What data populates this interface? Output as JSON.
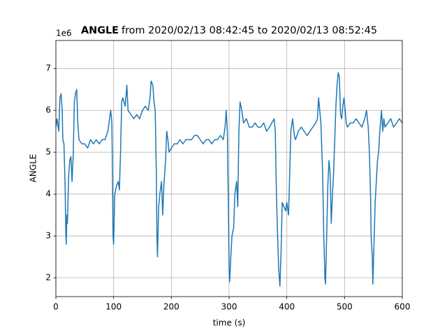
{
  "chart_data": {
    "type": "line",
    "title": {
      "name": "ANGLE",
      "rest": "from 2020/02/13 08:42:45 to 2020/02/13 08:52:45"
    },
    "offset_label": "1e6",
    "xlabel": "time (s)",
    "ylabel": "ANGLE",
    "xlim": [
      0,
      600
    ],
    "xticks": [
      0,
      100,
      200,
      300,
      400,
      500,
      600
    ],
    "ylim": [
      1.55,
      7.67
    ],
    "yticks": [
      2,
      3,
      4,
      5,
      6,
      7
    ],
    "grid": true,
    "series": [
      {
        "name": "ANGLE",
        "color": "#1f77b4",
        "x": [
          0,
          2,
          5,
          7,
          9,
          11,
          12,
          14,
          16,
          17,
          18,
          19,
          20,
          22,
          24,
          26,
          28,
          30,
          32,
          34,
          36,
          38,
          40,
          45,
          50,
          55,
          60,
          65,
          70,
          75,
          80,
          85,
          90,
          93,
          95,
          97,
          98,
          99,
          100,
          102,
          105,
          108,
          110,
          112,
          114,
          116,
          120,
          123,
          125,
          130,
          135,
          140,
          145,
          150,
          155,
          160,
          163,
          165,
          168,
          170,
          172,
          174,
          175,
          176,
          178,
          180,
          183,
          185,
          187,
          190,
          192,
          194,
          196,
          200,
          205,
          210,
          215,
          220,
          225,
          230,
          235,
          240,
          245,
          250,
          255,
          260,
          265,
          270,
          275,
          280,
          285,
          290,
          293,
          295,
          297,
          299,
          300,
          301,
          303,
          305,
          308,
          310,
          313,
          315,
          317,
          319,
          322,
          325,
          330,
          335,
          340,
          345,
          350,
          355,
          360,
          365,
          370,
          374,
          378,
          380,
          382,
          384,
          386,
          388,
          390,
          392,
          395,
          398,
          400,
          403,
          405,
          407,
          410,
          413,
          415,
          420,
          425,
          430,
          435,
          440,
          445,
          450,
          453,
          455,
          457,
          459,
          460,
          462,
          464,
          466,
          467,
          469,
          471,
          473,
          475,
          477,
          479,
          481,
          483,
          485,
          487,
          489,
          491,
          493,
          495,
          497,
          499,
          501,
          503,
          505,
          510,
          515,
          520,
          525,
          530,
          535,
          538,
          541,
          543,
          545,
          546,
          548,
          549,
          551,
          553,
          555,
          557,
          559,
          561,
          564,
          566,
          568,
          570,
          575,
          580,
          585,
          590,
          595,
          600
        ],
        "values": [
          5.6,
          5.8,
          5.5,
          6.3,
          6.4,
          6.0,
          5.3,
          5.2,
          4.2,
          3.2,
          2.8,
          3.5,
          3.3,
          4.4,
          4.8,
          4.9,
          4.3,
          4.9,
          6.2,
          6.4,
          6.5,
          5.7,
          5.3,
          5.2,
          5.2,
          5.1,
          5.3,
          5.2,
          5.3,
          5.2,
          5.3,
          5.3,
          5.5,
          5.8,
          6.0,
          5.7,
          4.5,
          3.0,
          2.8,
          4.0,
          4.2,
          4.3,
          4.1,
          5.0,
          6.2,
          6.3,
          6.1,
          6.6,
          6.0,
          5.9,
          5.8,
          5.9,
          5.8,
          6.0,
          6.1,
          6.0,
          6.3,
          6.7,
          6.6,
          6.2,
          6.0,
          4.5,
          3.0,
          2.5,
          3.7,
          4.0,
          4.3,
          3.5,
          4.2,
          4.8,
          5.5,
          5.3,
          5.0,
          5.1,
          5.2,
          5.2,
          5.3,
          5.2,
          5.3,
          5.3,
          5.3,
          5.4,
          5.4,
          5.3,
          5.2,
          5.3,
          5.3,
          5.2,
          5.3,
          5.3,
          5.4,
          5.3,
          5.6,
          6.0,
          5.5,
          3.5,
          2.2,
          1.9,
          2.5,
          3.0,
          3.2,
          4.0,
          4.3,
          3.7,
          5.5,
          6.2,
          6.0,
          5.7,
          5.8,
          5.6,
          5.6,
          5.7,
          5.6,
          5.6,
          5.7,
          5.5,
          5.6,
          5.7,
          5.8,
          5.5,
          4.0,
          3.0,
          2.2,
          1.8,
          2.6,
          3.8,
          3.7,
          3.6,
          3.8,
          3.5,
          4.5,
          5.5,
          5.8,
          5.4,
          5.3,
          5.5,
          5.6,
          5.5,
          5.4,
          5.5,
          5.6,
          5.7,
          5.8,
          6.3,
          6.0,
          5.7,
          5.3,
          4.5,
          3.0,
          2.0,
          1.85,
          3.0,
          4.2,
          4.8,
          4.5,
          3.3,
          4.0,
          4.5,
          5.3,
          6.1,
          6.6,
          6.9,
          6.8,
          5.9,
          5.8,
          6.1,
          6.3,
          6.0,
          5.7,
          5.6,
          5.7,
          5.7,
          5.8,
          5.7,
          5.6,
          5.8,
          6.0,
          5.6,
          5.0,
          4.0,
          3.0,
          2.5,
          1.85,
          2.8,
          3.8,
          4.3,
          4.8,
          5.0,
          5.5,
          6.0,
          5.5,
          5.8,
          5.6,
          5.7,
          5.8,
          5.6,
          5.7,
          5.8,
          5.7
        ]
      }
    ]
  }
}
